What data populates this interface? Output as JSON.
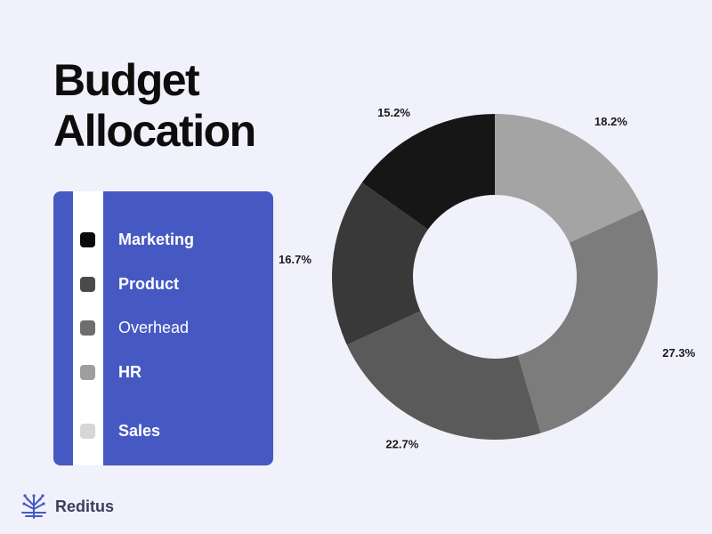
{
  "title": {
    "line1": "Budget",
    "line2": "Allocation"
  },
  "chart_data": {
    "type": "pie",
    "variant": "donut",
    "title": "Budget Allocation",
    "slices": [
      {
        "value": 18.2,
        "label": "18.2%",
        "color": "#a4a4a4"
      },
      {
        "value": 27.3,
        "label": "27.3%",
        "color": "#7c7c7c"
      },
      {
        "value": 22.7,
        "label": "22.7%",
        "color": "#5a5a5a"
      },
      {
        "value": 16.7,
        "label": "16.7%",
        "color": "#393939"
      },
      {
        "value": 15.2,
        "label": "15.2%",
        "color": "#161616"
      }
    ],
    "legend": [
      {
        "label": "Marketing",
        "color": "#0a0a0a"
      },
      {
        "label": "Product",
        "color": "#4a4a4a"
      },
      {
        "label": "Overhead",
        "color": "#6e6e6e"
      },
      {
        "label": "HR",
        "color": "#9e9e9e"
      },
      {
        "label": "Sales",
        "color": "#d6d6d6"
      }
    ],
    "legend_placement": "left"
  },
  "brand": {
    "name": "Reditus",
    "color": "#4659c2"
  }
}
